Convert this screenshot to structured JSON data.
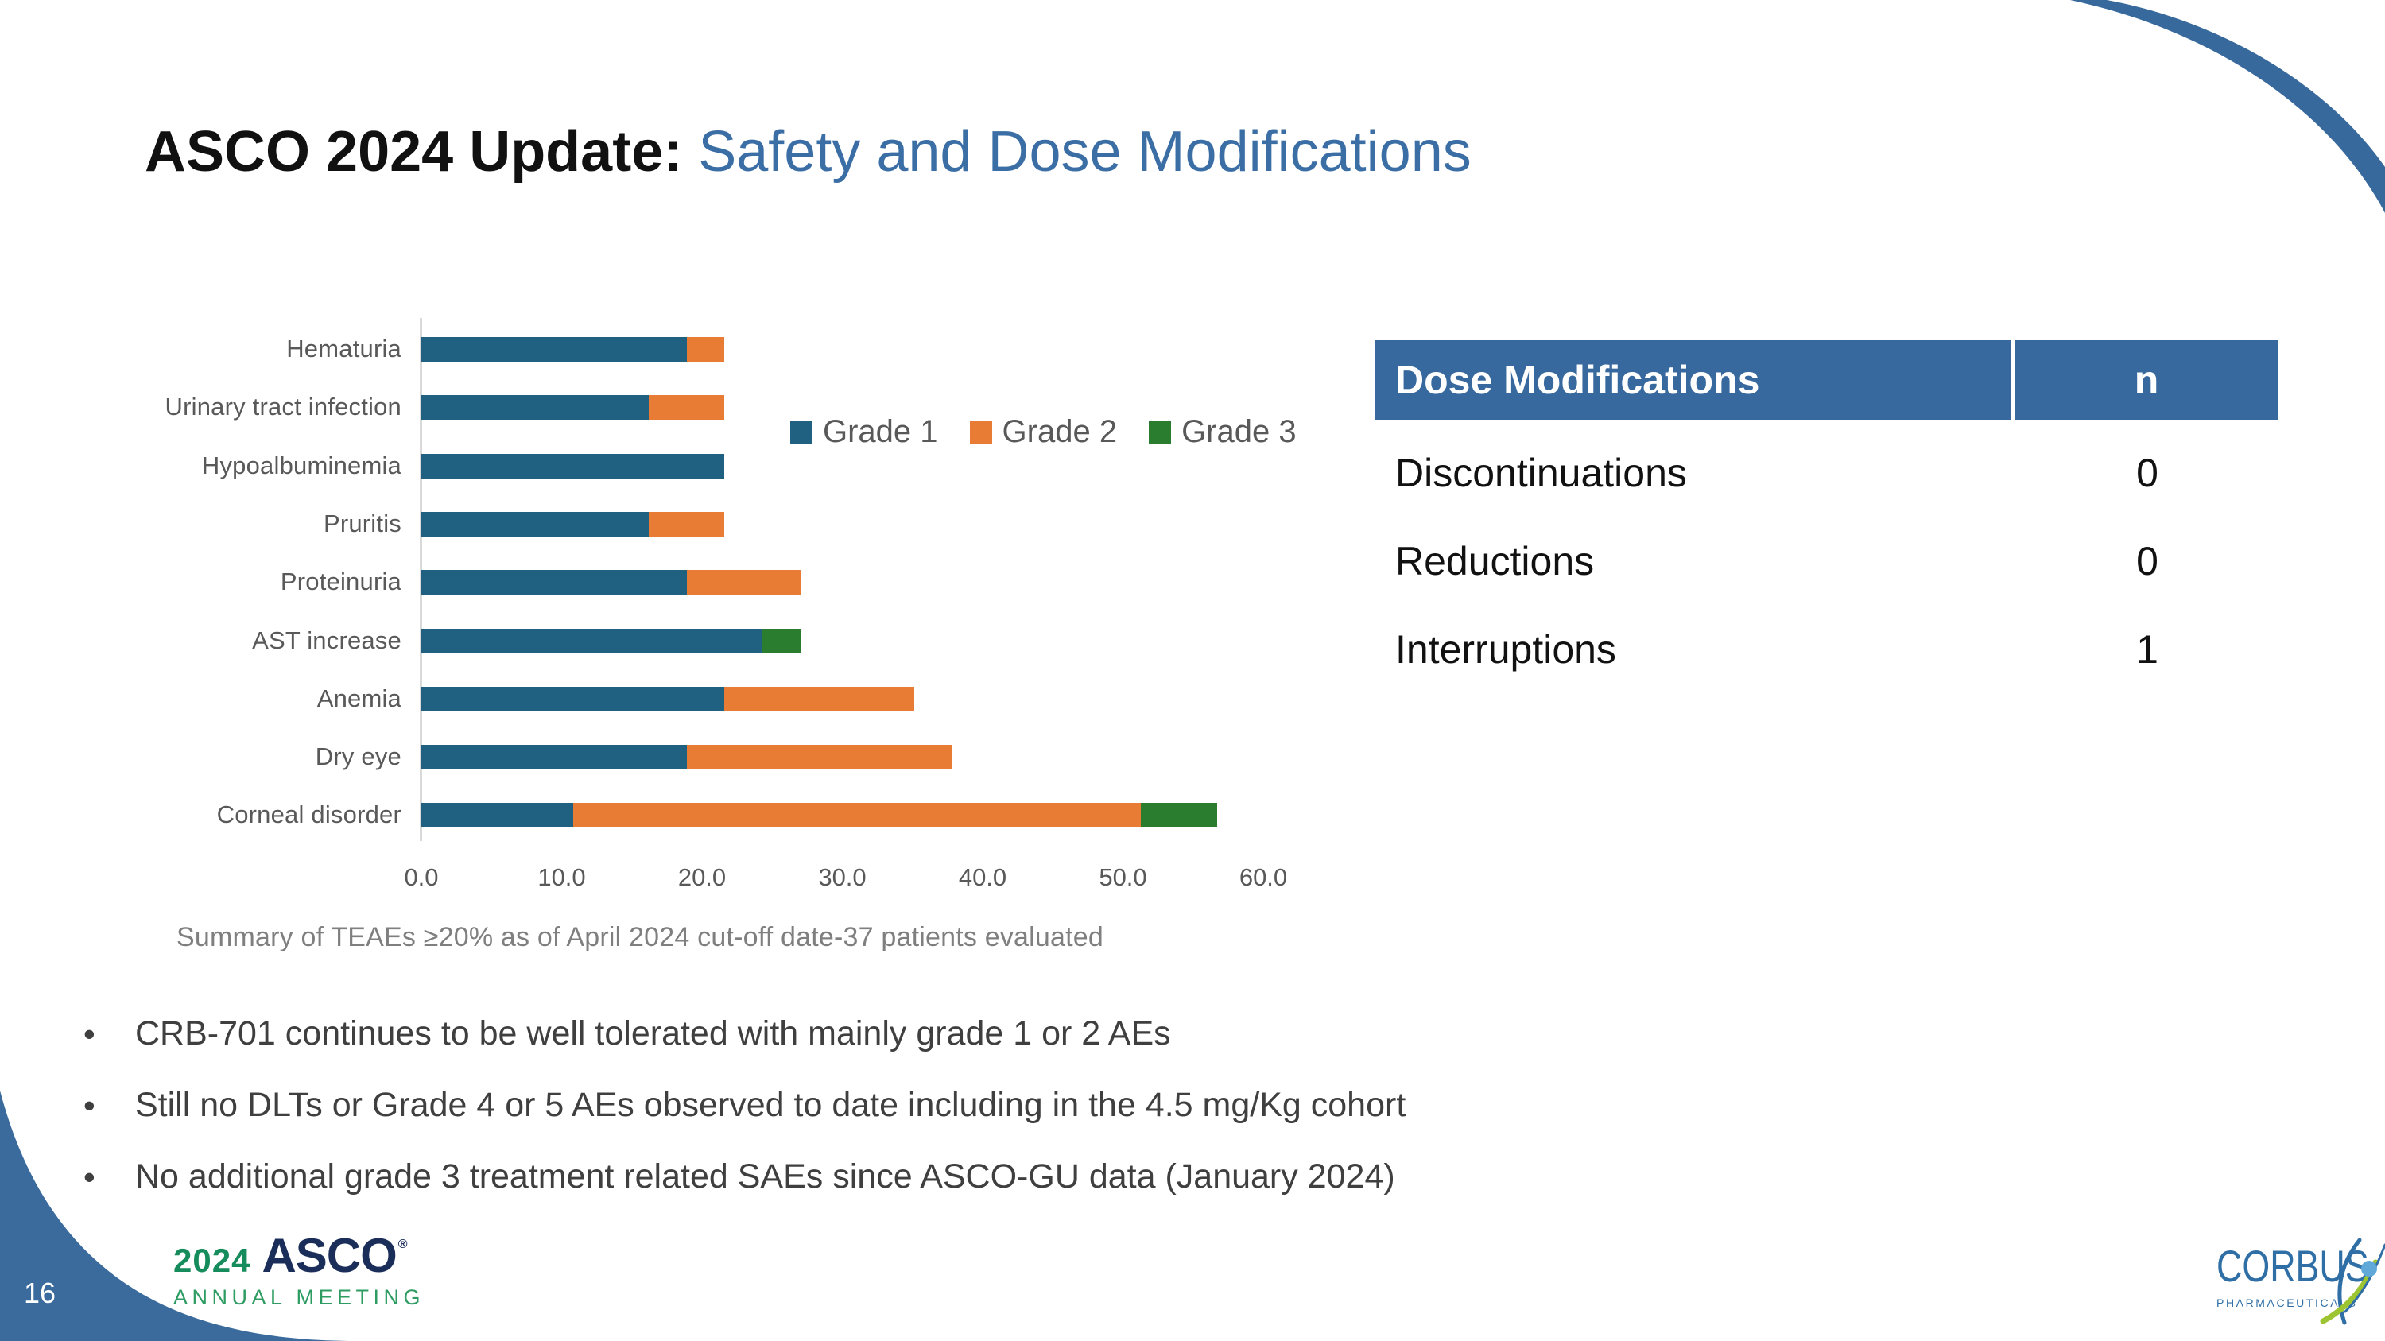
{
  "slide": {
    "page_number": "16"
  },
  "header": {
    "title_black": "ASCO 2024 Update:",
    "title_blue": " Safety and Dose Modifications"
  },
  "chart_data": {
    "type": "bar",
    "orientation": "horizontal",
    "stacked": true,
    "categories": [
      "Hematuria",
      "Urinary tract infection",
      "Hypoalbuminemia",
      "Pruritis",
      "Proteinuria",
      "AST increase",
      "Anemia",
      "Dry eye",
      "Corneal disorder"
    ],
    "series": [
      {
        "name": "Grade 1",
        "color": "#206080",
        "values": [
          18.9,
          16.2,
          21.6,
          16.2,
          18.9,
          24.3,
          21.6,
          18.9,
          10.8
        ]
      },
      {
        "name": "Grade 2",
        "color": "#E87C35",
        "values": [
          2.7,
          5.4,
          0,
          5.4,
          8.1,
          0,
          13.5,
          18.9,
          40.5
        ]
      },
      {
        "name": "Grade 3",
        "color": "#2A7D2E",
        "values": [
          0,
          0,
          0,
          0,
          0,
          2.7,
          0,
          0,
          5.4
        ]
      }
    ],
    "xlim": [
      0,
      60
    ],
    "x_ticks": [
      "0.0",
      "10.0",
      "20.0",
      "30.0",
      "40.0",
      "50.0",
      "60.0"
    ],
    "grid": false,
    "legend_position": "inside-top-right",
    "caption": "Summary of TEAEs ≥20% as of April 2024 cut-off date-37 patients evaluated"
  },
  "dose_table": {
    "header": [
      "Dose Modifications",
      "n"
    ],
    "rows": [
      {
        "label": "Discontinuations",
        "value": "0"
      },
      {
        "label": "Reductions",
        "value": "0"
      },
      {
        "label": "Interruptions",
        "value": "1"
      }
    ]
  },
  "bullets": [
    "CRB-701 continues to be well tolerated with mainly grade 1 or 2 AEs",
    "Still no DLTs or Grade 4 or 5 AEs observed to date including in the 4.5 mg/Kg cohort",
    "No additional grade 3 treatment related SAEs since ASCO-GU data (January 2024)"
  ],
  "footer": {
    "asco_year": "2024",
    "asco_name": "ASCO",
    "asco_reg": "®",
    "asco_sub": "ANNUAL MEETING",
    "corbus_name": "CORBUS",
    "corbus_tm": "™",
    "corbus_sub": "PHARMACEUTICALS"
  },
  "colors": {
    "grade1": "#206080",
    "grade2": "#E87C35",
    "grade3": "#2A7D2E",
    "title_blue": "#3A6EA5",
    "table_header_bg": "#38699E",
    "corner_blue": "#3A6B9C",
    "arc_blue": "#38699C",
    "axis_line": "#D9D9D9",
    "chart_text": "#595959",
    "caption_text": "#7F7F7F",
    "asco_green": "#168B5B",
    "asco_navy": "#1B2E5A",
    "asco_meeting_green": "#2E9C62",
    "corbus_blue": "#2F6FA6",
    "corbus_green": "#9DC431",
    "corbus_head_blue": "#5FA8D8"
  }
}
